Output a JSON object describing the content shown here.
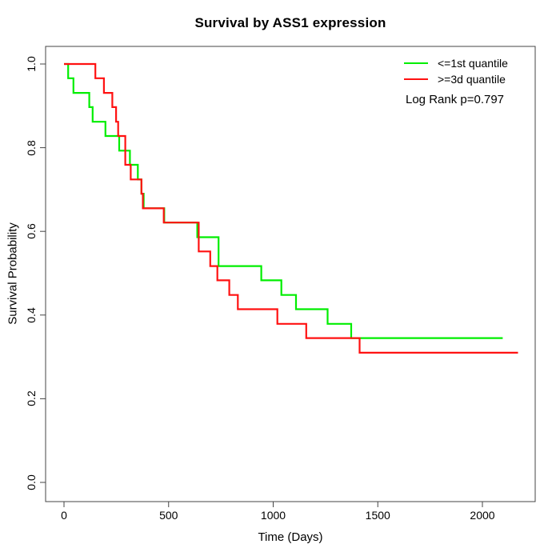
{
  "chart_data": {
    "type": "line",
    "subtype": "kaplan-meier-step-survival",
    "title": "Survival by ASS1 expression",
    "xlabel": "Time (Days)",
    "ylabel": "Survival Probability",
    "xlim": [
      0,
      2250
    ],
    "ylim": [
      0,
      1.0
    ],
    "x_ticks": [
      0,
      500,
      1000,
      1500,
      2000
    ],
    "y_ticks": [
      "0.0",
      "0.2",
      "0.4",
      "0.6",
      "0.8",
      "1.0"
    ],
    "grid": false,
    "legend_position": "top-right",
    "annotation": "Log Rank p=0.797",
    "axis_color": "#444444",
    "series": [
      {
        "name": "<=1st quantile",
        "color": "#00ee00",
        "points": [
          [
            0,
            1.0
          ],
          [
            20,
            0.966
          ],
          [
            45,
            0.931
          ],
          [
            121,
            0.897
          ],
          [
            137,
            0.862
          ],
          [
            198,
            0.828
          ],
          [
            264,
            0.793
          ],
          [
            315,
            0.759
          ],
          [
            353,
            0.724
          ],
          [
            370,
            0.69
          ],
          [
            381,
            0.655
          ],
          [
            479,
            0.621
          ],
          [
            637,
            0.586
          ],
          [
            739,
            0.517
          ],
          [
            943,
            0.483
          ],
          [
            1039,
            0.448
          ],
          [
            1109,
            0.414
          ],
          [
            1260,
            0.379
          ],
          [
            1373,
            0.345
          ],
          [
            2097,
            0.345
          ]
        ]
      },
      {
        "name": ">=3d quantile",
        "color": "#ff1111",
        "points": [
          [
            0,
            1.0
          ],
          [
            150,
            0.966
          ],
          [
            191,
            0.931
          ],
          [
            231,
            0.897
          ],
          [
            249,
            0.862
          ],
          [
            259,
            0.828
          ],
          [
            293,
            0.759
          ],
          [
            319,
            0.724
          ],
          [
            370,
            0.69
          ],
          [
            377,
            0.655
          ],
          [
            477,
            0.621
          ],
          [
            644,
            0.552
          ],
          [
            699,
            0.517
          ],
          [
            733,
            0.483
          ],
          [
            790,
            0.448
          ],
          [
            831,
            0.414
          ],
          [
            1020,
            0.379
          ],
          [
            1158,
            0.345
          ],
          [
            1413,
            0.31
          ],
          [
            2170,
            0.31
          ]
        ]
      }
    ]
  }
}
